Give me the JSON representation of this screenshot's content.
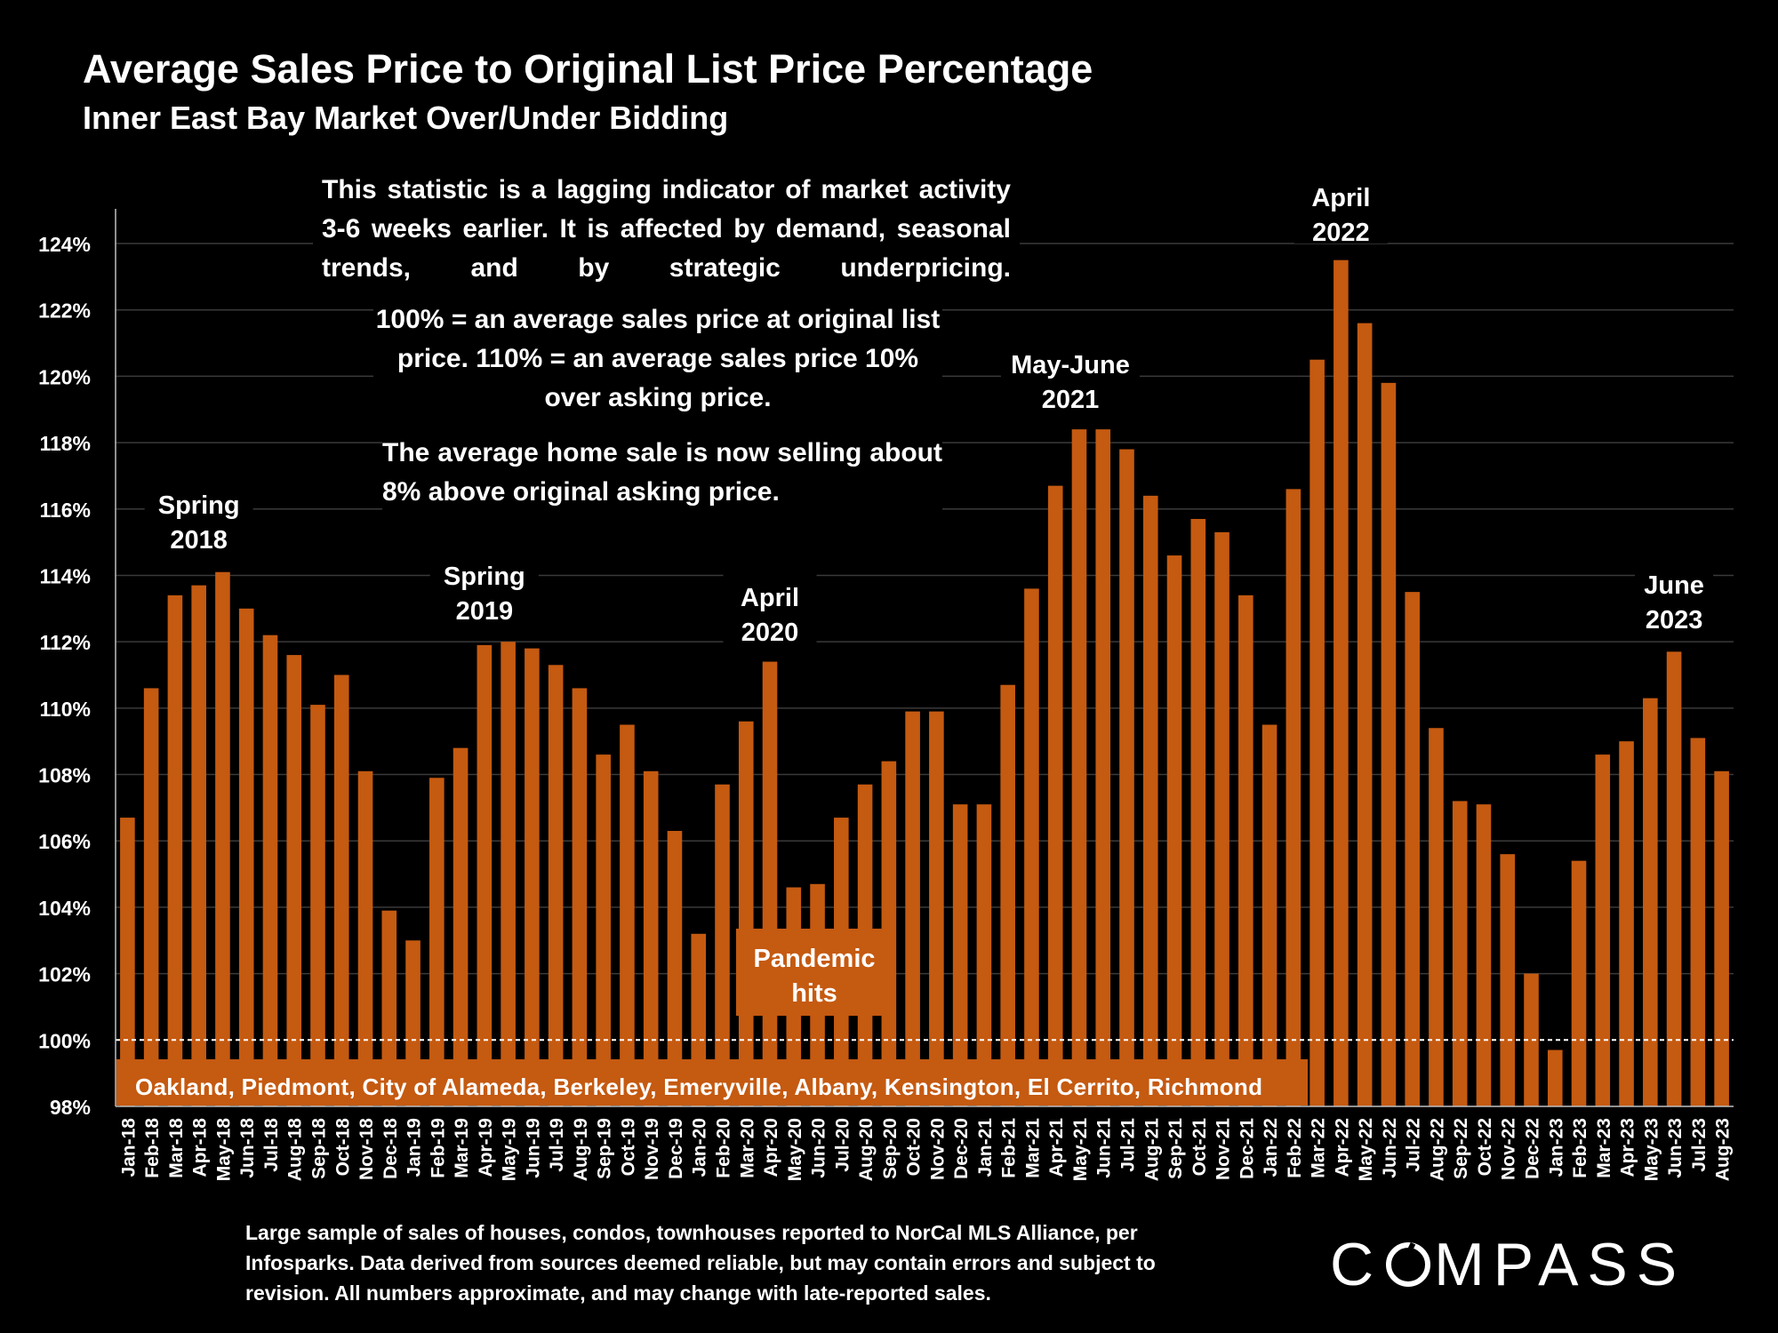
{
  "header": {
    "title": "Average Sales Price to Original List Price Percentage",
    "subtitle": "Inner East Bay Market Over/Under Bidding"
  },
  "notes": {
    "lagging": "This statistic is a lagging indicator of market activity 3-6 weeks earlier. It is affected by demand, seasonal trends, and by strategic underpricing.",
    "definition": "100% = an average sales price at original list price. 110% = an average sales price 10% over asking price.",
    "current": "The average home sale is now selling about 8% above original asking price."
  },
  "footnote": "Large sample of sales of houses, condos, townhouses reported to NorCal MLS Alliance, per Infosparks. Data derived from sources deemed reliable, but may contain errors and subject to revision. All numbers approximate, and may change with late-reported sales.",
  "brand": {
    "logo_text": "COMPASS"
  },
  "colors": {
    "background": "#000000",
    "bar": "#c55a11",
    "text": "#ffffff",
    "gridline": "#3a3a3a"
  },
  "chart_data": {
    "type": "bar",
    "title": "Average Sales Price to Original List Price Percentage",
    "subtitle": "Inner East Bay Market Over/Under Bidding",
    "xlabel": "",
    "ylabel": "",
    "ylim": [
      98,
      124
    ],
    "yticks": [
      "98%",
      "100%",
      "102%",
      "104%",
      "106%",
      "108%",
      "110%",
      "112%",
      "114%",
      "116%",
      "118%",
      "120%",
      "122%",
      "124%"
    ],
    "grid": true,
    "reference_line": 100,
    "categories": [
      "Jan-18",
      "Feb-18",
      "Mar-18",
      "Apr-18",
      "May-18",
      "Jun-18",
      "Jul-18",
      "Aug-18",
      "Sep-18",
      "Oct-18",
      "Nov-18",
      "Dec-18",
      "Jan-19",
      "Feb-19",
      "Mar-19",
      "Apr-19",
      "May-19",
      "Jun-19",
      "Jul-19",
      "Aug-19",
      "Sep-19",
      "Oct-19",
      "Nov-19",
      "Dec-19",
      "Jan-20",
      "Feb-20",
      "Mar-20",
      "Apr-20",
      "May-20",
      "Jun-20",
      "Jul-20",
      "Aug-20",
      "Sep-20",
      "Oct-20",
      "Nov-20",
      "Dec-20",
      "Jan-21",
      "Feb-21",
      "Mar-21",
      "Apr-21",
      "May-21",
      "Jun-21",
      "Jul-21",
      "Aug-21",
      "Sep-21",
      "Oct-21",
      "Nov-21",
      "Dec-21",
      "Jan-22",
      "Feb-22",
      "Mar-22",
      "Apr-22",
      "May-22",
      "Jun-22",
      "Jul-22",
      "Aug-22",
      "Sep-22",
      "Oct-22",
      "Nov-22",
      "Dec-22",
      "Jan-23",
      "Feb-23",
      "Mar-23",
      "Apr-23",
      "May-23",
      "Jun-23",
      "Jul-23",
      "Aug-23"
    ],
    "values": [
      106.7,
      110.6,
      113.4,
      113.7,
      114.1,
      113.0,
      112.2,
      111.6,
      110.1,
      111.0,
      108.1,
      103.9,
      103.0,
      107.9,
      108.8,
      111.9,
      112.0,
      111.8,
      111.3,
      110.6,
      108.6,
      109.5,
      108.1,
      106.3,
      103.2,
      107.7,
      109.6,
      111.4,
      104.6,
      104.7,
      106.7,
      107.7,
      108.4,
      109.9,
      109.9,
      107.1,
      107.1,
      110.7,
      113.6,
      116.7,
      118.4,
      118.4,
      117.8,
      116.4,
      114.6,
      115.7,
      115.3,
      113.4,
      109.5,
      116.6,
      120.5,
      123.5,
      121.6,
      119.8,
      113.5,
      109.4,
      107.2,
      107.1,
      105.6,
      102.0,
      99.7,
      105.4,
      108.6,
      109.0,
      110.3,
      111.7,
      109.1,
      108.1
    ],
    "annotations": [
      {
        "text": [
          "Spring",
          "2018"
        ],
        "category": "Apr-18"
      },
      {
        "text": [
          "Spring",
          "2019"
        ],
        "category": "Apr-19"
      },
      {
        "text": [
          "April",
          "2020"
        ],
        "category": "Apr-20"
      },
      {
        "text": [
          "May-June",
          "2021"
        ],
        "category": "May-21"
      },
      {
        "text": [
          "April",
          "2022"
        ],
        "category": "Apr-22"
      },
      {
        "text": [
          "June",
          "2023"
        ],
        "category": "Jun-23"
      },
      {
        "text": [
          "Pandemic",
          "hits"
        ],
        "category": "May-20",
        "boxed": true
      }
    ],
    "region_label": "Oakland, Piedmont, City of Alameda, Berkeley, Emeryville, Albany, Kensington, El Cerrito, Richmond"
  }
}
